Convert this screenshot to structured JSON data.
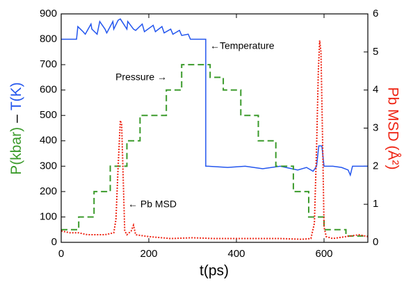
{
  "chart_data": {
    "type": "line",
    "xlabel": "t(ps)",
    "ylabel": [
      "P(kbar)",
      "–",
      "T(K)"
    ],
    "ylabel_colors": [
      "#3a9a2a",
      "#000000",
      "#2255ee"
    ],
    "y2label": "Pb MSD (Å²)",
    "y2label_color": "#ee2211",
    "annotations": [
      "←Temperature",
      "Pressure →",
      "← Pb MSD"
    ],
    "xlim": [
      0,
      700
    ],
    "xticks": [
      0,
      200,
      400,
      600
    ],
    "ylim": [
      0,
      900
    ],
    "yticks": [
      0,
      100,
      200,
      300,
      400,
      500,
      600,
      700,
      800,
      900
    ],
    "y2lim": [
      0,
      6
    ],
    "y2ticks": [
      0,
      1,
      2,
      3,
      4,
      5,
      6
    ],
    "grid": false,
    "series": [
      {
        "name": "Temperature",
        "color": "#2255ee",
        "style": "solid",
        "x": [
          0,
          35,
          38,
          50,
          55,
          68,
          70,
          82,
          88,
          100,
          104,
          118,
          120,
          130,
          135,
          150,
          152,
          165,
          170,
          185,
          190,
          210,
          215,
          230,
          235,
          250,
          255,
          270,
          275,
          290,
          295,
          330,
          330,
          335,
          380,
          420,
          460,
          500,
          540,
          560,
          575,
          583,
          588,
          595,
          600,
          620,
          640,
          655,
          660,
          665,
          680,
          700
        ],
        "values": [
          800,
          800,
          850,
          830,
          820,
          860,
          840,
          820,
          870,
          840,
          825,
          870,
          840,
          875,
          880,
          840,
          870,
          840,
          835,
          860,
          830,
          855,
          830,
          850,
          825,
          840,
          820,
          835,
          815,
          820,
          800,
          800,
          300,
          300,
          295,
          300,
          290,
          300,
          285,
          295,
          280,
          300,
          380,
          380,
          300,
          300,
          295,
          285,
          265,
          300,
          300,
          300
        ]
      },
      {
        "name": "Pressure",
        "color": "#3a9a2a",
        "style": "dashed",
        "x": [
          0,
          40,
          40,
          75,
          75,
          112,
          112,
          150,
          150,
          180,
          180,
          240,
          240,
          275,
          275,
          340,
          340,
          370,
          370,
          410,
          410,
          450,
          450,
          490,
          490,
          530,
          530,
          565,
          565,
          600,
          600,
          650,
          650,
          700
        ],
        "values": [
          50,
          50,
          100,
          100,
          200,
          200,
          300,
          300,
          400,
          400,
          500,
          500,
          600,
          600,
          700,
          700,
          650,
          650,
          600,
          600,
          500,
          500,
          400,
          400,
          300,
          300,
          200,
          200,
          100,
          100,
          50,
          50,
          25,
          25
        ]
      },
      {
        "name": "Pb MSD",
        "color": "#ee2211",
        "style": "dotted",
        "axis": "y2",
        "x": [
          0,
          20,
          40,
          60,
          80,
          100,
          120,
          125,
          130,
          135,
          138,
          142,
          145,
          150,
          160,
          165,
          170,
          200,
          250,
          300,
          350,
          400,
          450,
          500,
          550,
          570,
          578,
          583,
          587,
          590,
          593,
          597,
          600,
          605,
          620,
          650,
          680,
          700
        ],
        "values": [
          0.3,
          0.25,
          0.25,
          0.2,
          0.2,
          0.2,
          0.25,
          0.6,
          2.0,
          3.2,
          3.1,
          1.5,
          0.3,
          0.2,
          0.3,
          0.45,
          0.2,
          0.15,
          0.1,
          0.12,
          0.1,
          0.1,
          0.1,
          0.1,
          0.08,
          0.1,
          0.5,
          2.5,
          4.5,
          5.3,
          5.0,
          2.5,
          0.4,
          0.15,
          0.1,
          0.15,
          0.2,
          0.15
        ]
      }
    ]
  }
}
